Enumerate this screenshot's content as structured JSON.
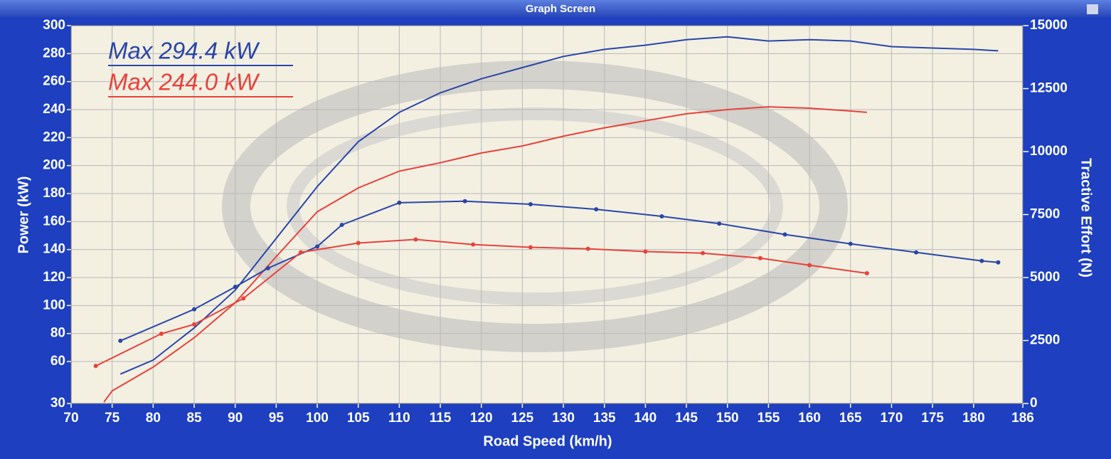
{
  "window_title": "Graph Screen",
  "chart_data": {
    "type": "line",
    "xlabel": "Road Speed (km/h)",
    "ylabel": "Power (kW)",
    "y2label": "Tractive Effort (N)",
    "xlim": [
      70,
      186
    ],
    "xticks": [
      70,
      75,
      80,
      85,
      90,
      95,
      100,
      105,
      110,
      115,
      120,
      125,
      130,
      135,
      140,
      145,
      150,
      155,
      160,
      165,
      170,
      175,
      180,
      186
    ],
    "ylim": [
      30,
      300
    ],
    "yticks": [
      30,
      60,
      80,
      100,
      120,
      140,
      160,
      180,
      200,
      220,
      240,
      260,
      280,
      300
    ],
    "y2lim": [
      0,
      15000
    ],
    "y2ticks": [
      0,
      2500,
      5000,
      7500,
      10000,
      12500,
      15000
    ],
    "grid": true,
    "annotations": [
      {
        "text": "Max 294.4 kW",
        "color": "#2a45a8"
      },
      {
        "text": "Max 244.0 kW",
        "color": "#e8413c"
      }
    ],
    "series": [
      {
        "color": "#2a45a8",
        "axis": "y",
        "markers": false,
        "x": [
          76,
          80,
          85,
          90,
          95,
          100,
          105,
          110,
          115,
          120,
          125,
          130,
          135,
          140,
          145,
          150,
          155,
          160,
          165,
          170,
          175,
          180,
          183
        ],
        "values": [
          51,
          61,
          84,
          111,
          148,
          185,
          217,
          238,
          252,
          262,
          270,
          278,
          283,
          286,
          290,
          292,
          289,
          290,
          289,
          285,
          284,
          283,
          282
        ]
      },
      {
        "color": "#e8413c",
        "axis": "y",
        "markers": false,
        "x": [
          74,
          75,
          80,
          85,
          90,
          95,
          100,
          105,
          110,
          115,
          120,
          125,
          130,
          135,
          140,
          145,
          150,
          155,
          160,
          165,
          167
        ],
        "values": [
          31,
          39,
          56,
          77,
          102,
          135,
          167,
          184,
          196,
          202,
          209,
          214,
          221,
          227,
          232,
          237,
          240,
          242,
          241,
          239,
          238
        ]
      },
      {
        "color": "#2a45a8",
        "axis": "y2",
        "markers": true,
        "x": [
          76,
          85,
          90,
          94,
          100,
          103,
          110,
          118,
          126,
          134,
          142,
          149,
          157,
          165,
          173,
          181,
          183
        ],
        "values": [
          2490,
          3740,
          4630,
          5370,
          6230,
          7090,
          7970,
          8030,
          7910,
          7710,
          7430,
          7140,
          6710,
          6340,
          6000,
          5660,
          5600
        ]
      },
      {
        "color": "#e8413c",
        "axis": "y2",
        "markers": true,
        "x": [
          73,
          81,
          85,
          91,
          98,
          105,
          112,
          119,
          126,
          133,
          140,
          147,
          154,
          160,
          167
        ],
        "values": [
          1490,
          2770,
          3140,
          4170,
          6000,
          6370,
          6510,
          6310,
          6200,
          6140,
          6030,
          5970,
          5770,
          5490,
          5170
        ]
      }
    ]
  }
}
